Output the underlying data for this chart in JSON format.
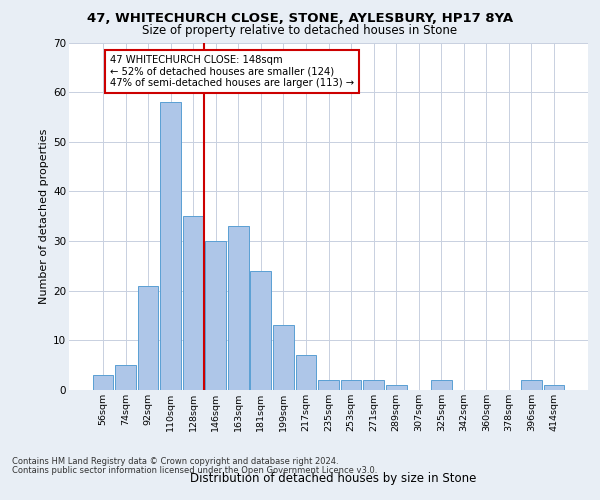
{
  "title1": "47, WHITECHURCH CLOSE, STONE, AYLESBURY, HP17 8YA",
  "title2": "Size of property relative to detached houses in Stone",
  "xlabel": "Distribution of detached houses by size in Stone",
  "ylabel": "Number of detached properties",
  "categories": [
    "56sqm",
    "74sqm",
    "92sqm",
    "110sqm",
    "128sqm",
    "146sqm",
    "163sqm",
    "181sqm",
    "199sqm",
    "217sqm",
    "235sqm",
    "253sqm",
    "271sqm",
    "289sqm",
    "307sqm",
    "325sqm",
    "342sqm",
    "360sqm",
    "378sqm",
    "396sqm",
    "414sqm"
  ],
  "values": [
    3,
    5,
    21,
    58,
    35,
    30,
    33,
    24,
    13,
    7,
    2,
    2,
    2,
    1,
    0,
    2,
    0,
    0,
    0,
    2,
    1
  ],
  "bar_color": "#aec6e8",
  "bar_edge_color": "#5a9fd4",
  "vline_index": 4.5,
  "vline_color": "#cc0000",
  "annotation_text": "47 WHITECHURCH CLOSE: 148sqm\n← 52% of detached houses are smaller (124)\n47% of semi-detached houses are larger (113) →",
  "annotation_box_color": "#ffffff",
  "annotation_box_edge_color": "#cc0000",
  "ylim": [
    0,
    70
  ],
  "yticks": [
    0,
    10,
    20,
    30,
    40,
    50,
    60,
    70
  ],
  "footer1": "Contains HM Land Registry data © Crown copyright and database right 2024.",
  "footer2": "Contains public sector information licensed under the Open Government Licence v3.0.",
  "bg_color": "#e8eef5",
  "plot_bg_color": "#ffffff",
  "grid_color": "#c8d0e0"
}
